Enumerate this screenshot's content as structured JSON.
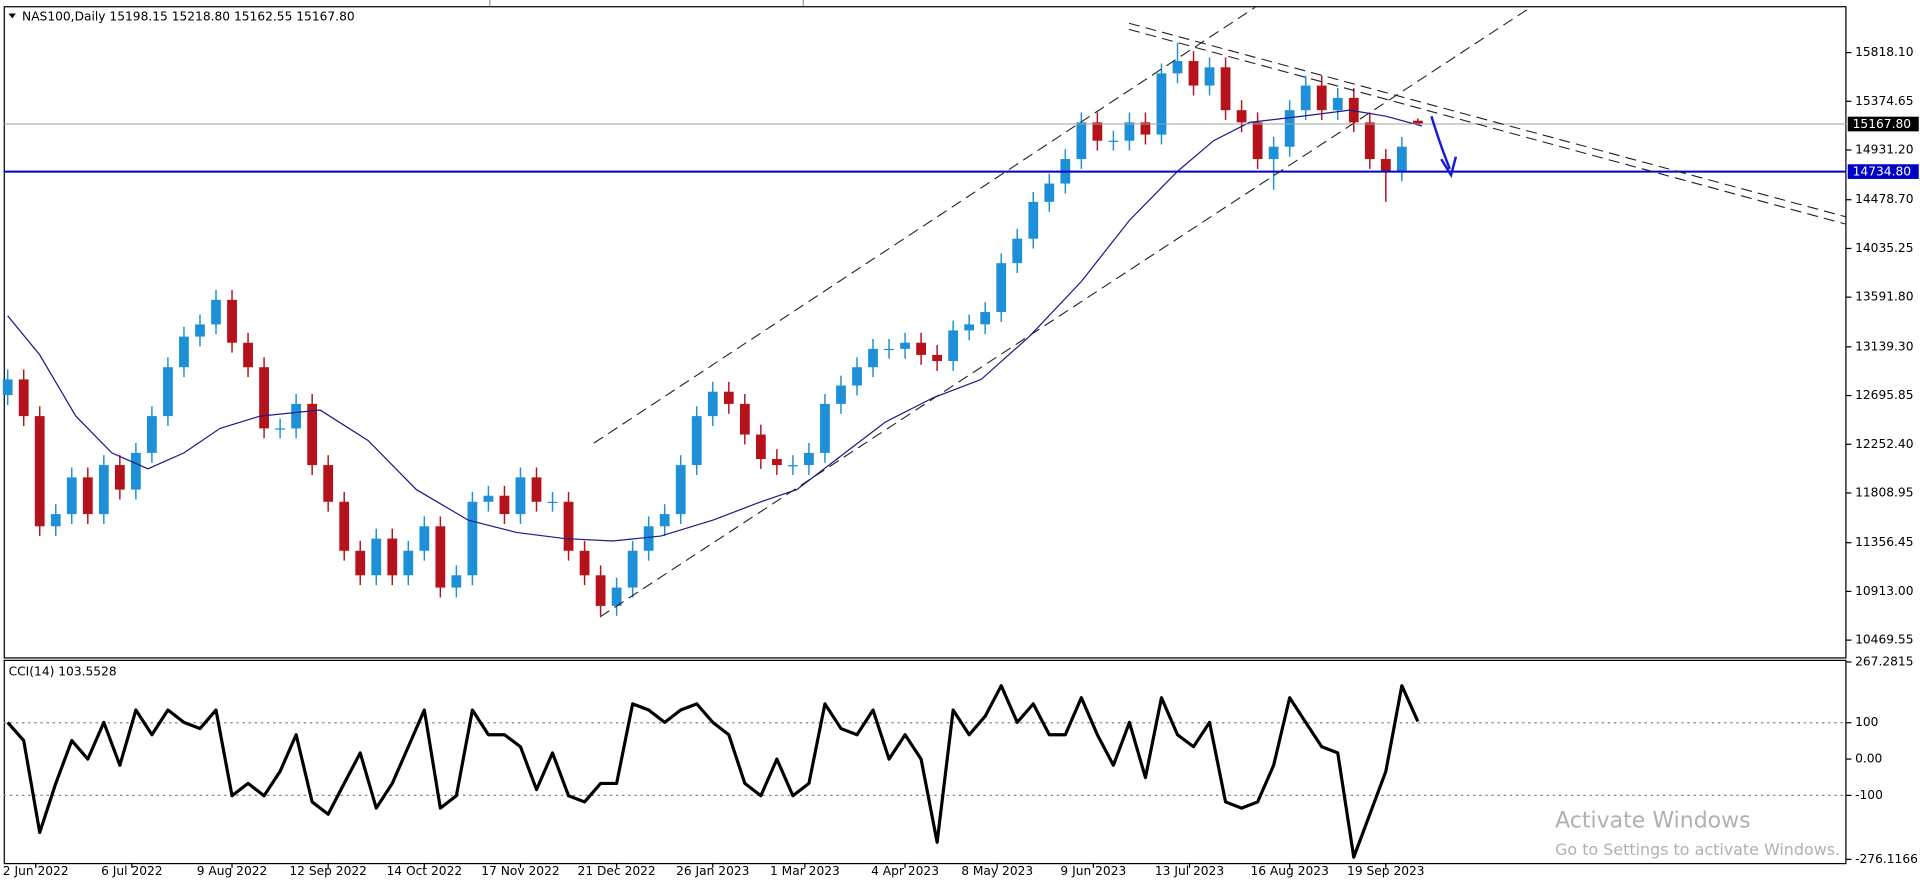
{
  "chart_data": [
    {
      "type": "candlestick",
      "title": "NAS100,Daily  15198.15 15218.80 15162.55 15167.80",
      "up_color": "#1e90d8",
      "down_color": "#b5121b",
      "x": [
        0,
        4,
        8,
        12,
        16,
        20,
        24,
        28,
        32,
        36,
        40,
        44,
        48,
        52,
        56,
        60,
        64,
        68,
        72,
        76,
        80,
        84,
        88,
        92,
        96,
        100,
        104,
        108,
        112,
        116,
        120,
        124,
        128,
        132,
        136,
        140,
        144,
        148,
        152,
        156,
        160,
        164,
        168,
        172,
        176,
        180,
        184,
        188,
        192,
        196,
        200,
        204,
        208,
        212,
        216,
        220,
        224,
        228,
        232,
        236,
        240,
        244,
        248,
        252,
        256,
        260,
        264,
        268,
        272,
        276,
        280,
        284,
        288,
        292,
        296,
        300,
        304,
        308,
        312,
        316,
        320,
        324,
        328,
        332,
        336,
        340,
        344,
        348,
        352
      ],
      "open": [
        12700,
        12843,
        12509,
        11506,
        11617,
        11951,
        11617,
        12063,
        11840,
        12174,
        12509,
        12954,
        13233,
        13344,
        13567,
        13177,
        12954,
        12397,
        12397,
        12620,
        12063,
        11729,
        11283,
        11060,
        11394,
        11060,
        11283,
        11506,
        10948,
        11060,
        11729,
        11784,
        11617,
        11951,
        11729,
        11729,
        11283,
        11060,
        10781,
        10948,
        11283,
        11506,
        11617,
        12063,
        12509,
        12731,
        12620,
        12341,
        12118,
        12063,
        12063,
        12174,
        12620,
        12787,
        12954,
        13121,
        13121,
        13177,
        13066,
        13010,
        13289,
        13344,
        13456,
        13901,
        14124,
        14459,
        14626,
        14849,
        15183,
        15016,
        15016,
        15183,
        15072,
        15629,
        15741,
        15518,
        15684,
        15294,
        15183,
        14849,
        14961,
        15294,
        15518,
        15294,
        15406,
        15183,
        14849,
        14737,
        15198.15
      ],
      "high": [
        12933,
        12933,
        12599,
        11707,
        12041,
        12041,
        12153,
        12153,
        12264,
        12599,
        13044,
        13323,
        13434,
        13657,
        13657,
        13267,
        13044,
        12487,
        12710,
        12710,
        12153,
        11819,
        11373,
        11484,
        11484,
        11373,
        11596,
        11596,
        11150,
        11819,
        11874,
        11874,
        12041,
        12041,
        11819,
        11819,
        11373,
        11150,
        11038,
        11373,
        11596,
        11707,
        12153,
        12599,
        12821,
        12821,
        12710,
        12431,
        12208,
        12153,
        12264,
        12710,
        12877,
        13044,
        13211,
        13211,
        13267,
        13267,
        13156,
        13379,
        13434,
        13546,
        13991,
        14214,
        14549,
        14716,
        14939,
        15273,
        15273,
        15106,
        15273,
        15273,
        15719,
        15907,
        15831,
        15774,
        15774,
        15384,
        15273,
        15051,
        15384,
        15608,
        15608,
        15496,
        15496,
        15273,
        14939,
        15051,
        15218.8
      ],
      "low": [
        12610,
        12419,
        11416,
        11416,
        11527,
        11527,
        11527,
        11750,
        11750,
        12084,
        12419,
        12864,
        13143,
        13254,
        13087,
        12864,
        12307,
        12307,
        12307,
        11973,
        11639,
        11193,
        10970,
        10970,
        10970,
        10970,
        11193,
        10858,
        10858,
        10970,
        11639,
        11527,
        11527,
        11639,
        11639,
        11193,
        10970,
        10691,
        10691,
        10858,
        11193,
        11416,
        11527,
        11973,
        12419,
        12530,
        12251,
        12028,
        11973,
        11973,
        11973,
        12084,
        12530,
        12697,
        12864,
        13031,
        13031,
        12976,
        12920,
        12920,
        13199,
        13254,
        13366,
        13811,
        14034,
        14369,
        14536,
        14759,
        14926,
        14926,
        14926,
        14982,
        14982,
        15539,
        15428,
        15428,
        15204,
        15093,
        14759,
        14570,
        14871,
        15204,
        15204,
        15204,
        15093,
        14759,
        14459,
        14647,
        15162.55
      ],
      "close": [
        12843,
        12509,
        11506,
        11617,
        11951,
        11617,
        12063,
        11840,
        12174,
        12509,
        12954,
        13233,
        13344,
        13567,
        13177,
        12954,
        12397,
        12397,
        12620,
        12063,
        11729,
        11283,
        11060,
        11394,
        11060,
        11283,
        11506,
        10948,
        11060,
        11729,
        11784,
        11617,
        11951,
        11729,
        11729,
        11283,
        11060,
        10781,
        10948,
        11283,
        11506,
        11617,
        12063,
        12509,
        12731,
        12620,
        12341,
        12118,
        12063,
        12063,
        12174,
        12620,
        12787,
        12954,
        13121,
        13121,
        13177,
        13066,
        13010,
        13289,
        13344,
        13456,
        13901,
        14124,
        14459,
        14626,
        14849,
        15183,
        15016,
        15016,
        15183,
        15072,
        15629,
        15741,
        15518,
        15684,
        15294,
        15183,
        14849,
        14961,
        15294,
        15518,
        15294,
        15406,
        15183,
        14849,
        14737,
        14961,
        15167.8
      ],
      "ma": {
        "color": "#1a1a8c",
        "x": [
          0,
          8,
          17,
          26,
          35,
          44,
          53,
          63,
          78,
          90,
          102,
          115,
          127,
          139,
          151,
          163,
          176,
          188,
          197,
          209,
          219,
          231,
          243,
          255,
          268,
          280,
          292,
          301,
          310,
          323,
          335,
          344,
          353
        ],
        "values": [
          13422,
          13066,
          12509,
          12174,
          12029,
          12174,
          12397,
          12509,
          12564,
          12286,
          11840,
          11561,
          11450,
          11394,
          11372,
          11417,
          11561,
          11729,
          11840,
          12174,
          12453,
          12676,
          12843,
          13233,
          13734,
          14291,
          14737,
          15016,
          15183,
          15239,
          15294,
          15239,
          15150
        ]
      },
      "hlines": [
        {
          "value": 15167.8,
          "label": "15167.80",
          "color": "#a0a0a0",
          "label_color": "#000000"
        },
        {
          "value": 14734.8,
          "label": "14734.80",
          "color": "#0000c8",
          "label_color": "#0000c8"
        }
      ],
      "xlim": [
        -1,
        459
      ],
      "ylim": [
        10313,
        16230
      ],
      "yticks": [
        {
          "value": 15818.1,
          "label": "15818.10"
        },
        {
          "value": 15374.65,
          "label": "15374.65"
        },
        {
          "value": 14931.2,
          "label": "14931.20"
        },
        {
          "value": 14478.7,
          "label": "14478.70"
        },
        {
          "value": 14035.25,
          "label": "14035.25"
        },
        {
          "value": 13591.8,
          "label": "13591.80"
        },
        {
          "value": 13139.3,
          "label": "13139.30"
        },
        {
          "value": 12695.85,
          "label": "12695.85"
        },
        {
          "value": 12252.4,
          "label": "12252.40"
        },
        {
          "value": 11808.95,
          "label": "11808.95"
        },
        {
          "value": 11356.45,
          "label": "11356.45"
        },
        {
          "value": 10913,
          "label": "10913.00"
        },
        {
          "value": 10469.55,
          "label": "10469.55"
        }
      ],
      "xticks": [
        {
          "value": 7,
          "label": "2 Jun 2022"
        },
        {
          "value": 31,
          "label": "6 Jul 2022"
        },
        {
          "value": 56,
          "label": "9 Aug 2022"
        },
        {
          "value": 80,
          "label": "12 Sep 2022"
        },
        {
          "value": 104,
          "label": "14 Oct 2022"
        },
        {
          "value": 128,
          "label": "17 Nov 2022"
        },
        {
          "value": 152,
          "label": "21 Dec 2022"
        },
        {
          "value": 176,
          "label": "26 Jan 2023"
        },
        {
          "value": 199,
          "label": "1 Mar 2023"
        },
        {
          "value": 224,
          "label": "4 Apr 2023"
        },
        {
          "value": 247,
          "label": "8 May 2023"
        },
        {
          "value": 271,
          "label": "9 Jun 2023"
        },
        {
          "value": 295,
          "label": "13 Jul 2023"
        },
        {
          "value": 320,
          "label": "16 Aug 2023"
        },
        {
          "value": 344,
          "label": "19 Sep 2023"
        }
      ]
    },
    {
      "type": "line",
      "title": "CCI(14) 103.5528",
      "color": "#000000",
      "x": [
        0,
        4,
        8,
        12,
        16,
        20,
        24,
        28,
        32,
        36,
        40,
        44,
        48,
        52,
        56,
        60,
        64,
        68,
        72,
        76,
        80,
        84,
        88,
        92,
        96,
        100,
        104,
        108,
        112,
        116,
        120,
        124,
        128,
        132,
        136,
        140,
        144,
        148,
        152,
        156,
        160,
        164,
        168,
        172,
        176,
        180,
        184,
        188,
        192,
        196,
        200,
        204,
        208,
        212,
        216,
        220,
        224,
        228,
        232,
        236,
        240,
        244,
        248,
        252,
        256,
        260,
        264,
        268,
        272,
        276,
        280,
        284,
        288,
        292,
        296,
        300,
        304,
        308,
        312,
        316,
        320,
        324,
        328,
        332,
        336,
        340,
        344,
        348,
        352
      ],
      "values": [
        101,
        51,
        -202,
        -67,
        51,
        0,
        101,
        -17,
        135,
        67,
        135,
        101,
        84,
        135,
        -101,
        -67,
        -101,
        -34,
        67,
        -118,
        -152,
        -67,
        17,
        -135,
        -67,
        34,
        135,
        -135,
        -101,
        135,
        67,
        67,
        34,
        -84,
        17,
        -101,
        -118,
        -67,
        -67,
        152,
        135,
        101,
        135,
        152,
        101,
        67,
        -67,
        -101,
        0,
        -101,
        -67,
        152,
        84,
        67,
        135,
        0,
        67,
        0,
        -229,
        135,
        67,
        118,
        202,
        101,
        152,
        67,
        67,
        169,
        67,
        -17,
        101,
        -51,
        169,
        67,
        34,
        101,
        -118,
        -135,
        -118,
        -17,
        169,
        101,
        34,
        17,
        -270,
        -152,
        -34,
        202,
        103.5528
      ],
      "xlim": [
        -1,
        459
      ],
      "ylim": [
        -286,
        270
      ],
      "yticks": [
        267.2815,
        100,
        {
          "value": 0,
          "label": "0.00"
        },
        -100,
        -276.1166
      ],
      "levels": [
        100,
        -100
      ]
    }
  ],
  "watermark": {
    "title": "Activate Windows",
    "subtitle": "Go to Settings to activate Windows."
  }
}
